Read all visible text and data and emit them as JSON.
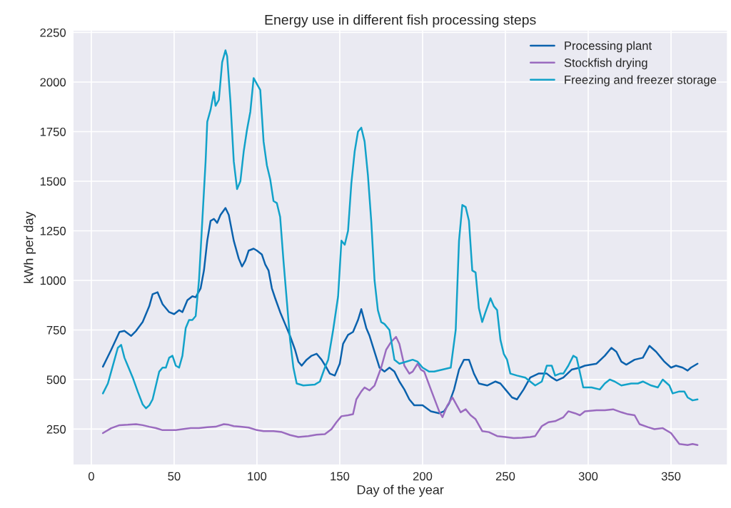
{
  "chart_data": {
    "type": "line",
    "title": "Energy use in different fish processing steps",
    "xlabel": "Day of the year",
    "ylabel": "kWh per day",
    "xlim": [
      -11,
      384
    ],
    "ylim": [
      70,
      2260
    ],
    "xticks": [
      0,
      50,
      100,
      150,
      200,
      250,
      300,
      350
    ],
    "yticks": [
      250,
      500,
      750,
      1000,
      1250,
      1500,
      1750,
      2000,
      2250
    ],
    "grid": true,
    "legend": "top right",
    "marker": "none",
    "line_style": "solid",
    "series": [
      {
        "name": "Processing plant",
        "color": "#0b62ad",
        "x": [
          7,
          12,
          17,
          20,
          24,
          27,
          31,
          35,
          37,
          40,
          43,
          47,
          50,
          53,
          55,
          58,
          61,
          63,
          66,
          68,
          70,
          72,
          74,
          76,
          78,
          81,
          83,
          86,
          89,
          91,
          93,
          95,
          98,
          100,
          103,
          105,
          107,
          109,
          111,
          114,
          117,
          120,
          123,
          125,
          127,
          130,
          133,
          136,
          139,
          142,
          144,
          147,
          150,
          152,
          155,
          158,
          161,
          163,
          166,
          168,
          171,
          174,
          177,
          180,
          183,
          186,
          189,
          192,
          195,
          200,
          205,
          210,
          213,
          216,
          219,
          222,
          225,
          228,
          231,
          234,
          239,
          244,
          247,
          250,
          254,
          257,
          261,
          265,
          270,
          275,
          278,
          281,
          285,
          290,
          295,
          298,
          305,
          310,
          314,
          317,
          320,
          323,
          328,
          333,
          337,
          341,
          344,
          346,
          350,
          353,
          357,
          360,
          362,
          366
        ],
        "values": [
          565,
          650,
          740,
          745,
          720,
          745,
          790,
          870,
          930,
          940,
          880,
          840,
          830,
          850,
          840,
          900,
          920,
          915,
          960,
          1050,
          1200,
          1300,
          1310,
          1290,
          1330,
          1365,
          1330,
          1200,
          1110,
          1070,
          1100,
          1150,
          1160,
          1150,
          1130,
          1080,
          1050,
          960,
          910,
          840,
          780,
          720,
          650,
          590,
          570,
          600,
          620,
          630,
          600,
          560,
          530,
          520,
          580,
          680,
          725,
          740,
          800,
          855,
          760,
          720,
          640,
          560,
          540,
          560,
          540,
          490,
          450,
          400,
          370,
          370,
          340,
          330,
          340,
          380,
          450,
          550,
          600,
          600,
          530,
          480,
          470,
          490,
          480,
          450,
          410,
          400,
          450,
          510,
          530,
          530,
          510,
          495,
          510,
          550,
          560,
          570,
          580,
          620,
          660,
          640,
          590,
          575,
          600,
          610,
          670,
          640,
          610,
          590,
          560,
          570,
          560,
          545,
          560,
          580
        ]
      },
      {
        "name": "Stockfish drying",
        "color": "#9a6bbf",
        "x": [
          7,
          12,
          17,
          22,
          27,
          31,
          35,
          39,
          43,
          47,
          51,
          55,
          60,
          65,
          70,
          75,
          80,
          83,
          86,
          90,
          95,
          100,
          104,
          110,
          115,
          120,
          125,
          131,
          136,
          141,
          145,
          148,
          151,
          155,
          158,
          160,
          163,
          165,
          168,
          171,
          175,
          178,
          181,
          184,
          186,
          189,
          192,
          194,
          197,
          199,
          201,
          205,
          210,
          212,
          215,
          218,
          220,
          223,
          226,
          229,
          232,
          236,
          240,
          245,
          250,
          255,
          260,
          265,
          268,
          272,
          276,
          280,
          285,
          288,
          292,
          295,
          298,
          305,
          310,
          315,
          320,
          324,
          328,
          331,
          336,
          340,
          345,
          350,
          355,
          360,
          363,
          366
        ],
        "values": [
          230,
          255,
          270,
          272,
          275,
          270,
          262,
          255,
          245,
          245,
          245,
          250,
          255,
          255,
          260,
          262,
          275,
          272,
          265,
          262,
          258,
          245,
          240,
          240,
          235,
          220,
          210,
          215,
          222,
          225,
          250,
          285,
          315,
          320,
          325,
          400,
          440,
          460,
          445,
          470,
          560,
          650,
          690,
          715,
          680,
          570,
          530,
          540,
          580,
          550,
          540,
          450,
          340,
          310,
          370,
          410,
          380,
          335,
          350,
          320,
          300,
          240,
          235,
          215,
          210,
          205,
          207,
          210,
          215,
          265,
          285,
          290,
          310,
          340,
          330,
          320,
          340,
          345,
          345,
          350,
          335,
          325,
          320,
          275,
          260,
          250,
          255,
          230,
          175,
          170,
          175,
          170
        ]
      },
      {
        "name": "Freezing and freezer storage",
        "color": "#12a2c9",
        "x": [
          7,
          10,
          12,
          14,
          16,
          18,
          20,
          22,
          25,
          28,
          31,
          33,
          35,
          37,
          39,
          41,
          43,
          45,
          47,
          49,
          51,
          53,
          55,
          57,
          59,
          61,
          63,
          65,
          67,
          69,
          70,
          72,
          74,
          75,
          77,
          79,
          81,
          82,
          84,
          86,
          88,
          90,
          92,
          94,
          96,
          98,
          100,
          102,
          104,
          106,
          108,
          110,
          112,
          114,
          116,
          118,
          120,
          122,
          124,
          128,
          135,
          138,
          141,
          143,
          146,
          149,
          151,
          153,
          155,
          157,
          159,
          161,
          163,
          165,
          167,
          169,
          171,
          173,
          175,
          177,
          180,
          183,
          186,
          190,
          194,
          197,
          200,
          204,
          207,
          212,
          217,
          220,
          222,
          224,
          226,
          228,
          230,
          232,
          234,
          236,
          238,
          241,
          243,
          245,
          247,
          249,
          251,
          253,
          257,
          262,
          265,
          268,
          272,
          275,
          278,
          280,
          283,
          285,
          288,
          291,
          293,
          297,
          302,
          307,
          310,
          313,
          316,
          320,
          326,
          330,
          333,
          338,
          342,
          345,
          349,
          351,
          355,
          358,
          360,
          363,
          366
        ],
        "values": [
          430,
          480,
          540,
          600,
          660,
          675,
          610,
          570,
          510,
          440,
          375,
          355,
          370,
          400,
          470,
          540,
          560,
          560,
          610,
          620,
          570,
          560,
          620,
          760,
          800,
          800,
          820,
          1000,
          1300,
          1600,
          1800,
          1860,
          1950,
          1880,
          1910,
          2100,
          2160,
          2130,
          1900,
          1600,
          1460,
          1500,
          1650,
          1760,
          1850,
          2020,
          1990,
          1960,
          1700,
          1580,
          1510,
          1400,
          1390,
          1320,
          1100,
          900,
          700,
          560,
          480,
          470,
          475,
          490,
          560,
          600,
          750,
          920,
          1200,
          1180,
          1250,
          1490,
          1650,
          1750,
          1770,
          1700,
          1530,
          1300,
          1000,
          850,
          790,
          780,
          750,
          600,
          580,
          590,
          600,
          590,
          560,
          540,
          540,
          550,
          560,
          750,
          1200,
          1380,
          1370,
          1300,
          1050,
          1040,
          860,
          790,
          840,
          910,
          870,
          850,
          700,
          630,
          600,
          530,
          520,
          510,
          490,
          470,
          490,
          570,
          570,
          520,
          530,
          530,
          570,
          620,
          610,
          460,
          460,
          450,
          480,
          500,
          490,
          470,
          480,
          480,
          490,
          470,
          460,
          500,
          470,
          430,
          440,
          440,
          410,
          395,
          400
        ]
      }
    ]
  }
}
